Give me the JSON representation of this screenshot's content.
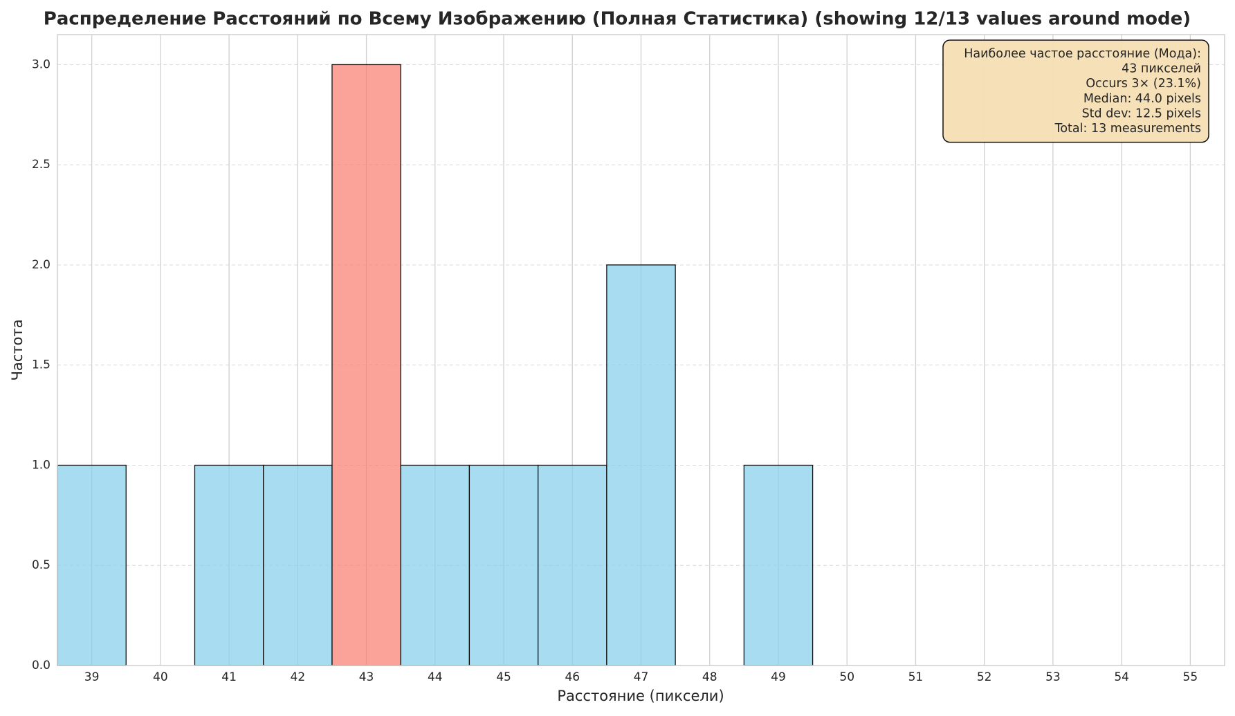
{
  "chart_data": {
    "type": "histogram",
    "title": "Распределение Расстояний по Всему Изображению (Полная Статистика) (showing 12/13 values around mode)",
    "xlabel": "Расстояние (пиксели)",
    "ylabel": "Частота",
    "bins": [
      38.5,
      39.5,
      40.5,
      41.5,
      42.5,
      43.5,
      44.5,
      45.5,
      46.5,
      47.5,
      48.5,
      49.5,
      50.5,
      51.5,
      52.5,
      53.5,
      54.5,
      55.5
    ],
    "counts": [
      1,
      0,
      1,
      1,
      3,
      1,
      1,
      1,
      2,
      0,
      1,
      0,
      0,
      0,
      0,
      0,
      0
    ],
    "bar_colors": [
      "#87ceeb",
      "#87ceeb",
      "#87ceeb",
      "#87ceeb",
      "#fa8072",
      "#87ceeb",
      "#87ceeb",
      "#87ceeb",
      "#87ceeb",
      "#87ceeb",
      "#87ceeb",
      "#87ceeb",
      "#87ceeb",
      "#87ceeb",
      "#87ceeb",
      "#87ceeb",
      "#87ceeb"
    ],
    "xlim": [
      38.5,
      55.5
    ],
    "xticks": [
      39,
      40,
      41,
      42,
      43,
      44,
      45,
      46,
      47,
      48,
      49,
      50,
      51,
      52,
      53,
      54,
      55
    ],
    "ylim": [
      0,
      3.15
    ],
    "yticks": [
      {
        "value": 0,
        "label": "0.0"
      },
      {
        "value": 0.5,
        "label": "0.5"
      },
      {
        "value": 1,
        "label": "1.0"
      },
      {
        "value": 1.5,
        "label": "1.5"
      },
      {
        "value": 2,
        "label": "2.0"
      },
      {
        "value": 2.5,
        "label": "2.5"
      },
      {
        "value": 3,
        "label": "3.0"
      }
    ],
    "grid": true,
    "annotation": [
      "Наиболее частое расстояние (Мода):",
      "43 пикселей",
      "Occurs 3× (23.1%)",
      "Median: 44.0 pixels",
      "Std dev: 12.5 pixels",
      "Total: 13 measurements"
    ]
  }
}
